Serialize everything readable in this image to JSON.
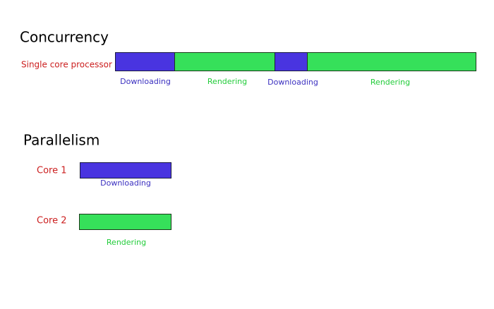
{
  "sections": [
    {
      "title": "Concurrency",
      "rows": [
        {
          "label": "Single core processor",
          "segments": [
            "Downloading",
            "Rendering",
            "Downloading",
            "Rendering"
          ]
        }
      ]
    },
    {
      "title": "Parallelism",
      "rows": [
        {
          "label": "Core 1",
          "segments": [
            "Downloading"
          ]
        },
        {
          "label": "Core 2",
          "segments": [
            "Rendering"
          ]
        }
      ]
    }
  ]
}
